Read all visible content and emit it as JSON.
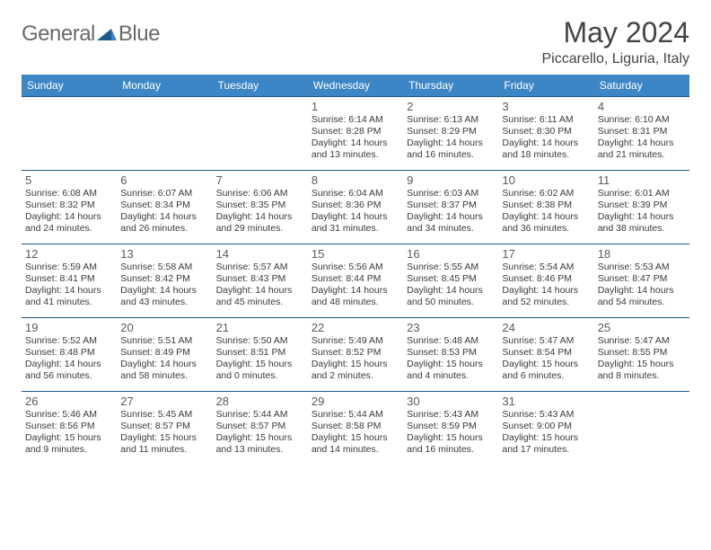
{
  "brand": {
    "name_part1": "General",
    "name_part2": "Blue",
    "text_color": "#6a6a6a",
    "icon_fill": "#1f5a8a"
  },
  "title": "May 2024",
  "location": "Piccarello, Liguria, Italy",
  "colors": {
    "header_bg": "#3d86c6",
    "header_text": "#ffffff",
    "row_border": "#1f5a8a",
    "body_text": "#3a3a3a"
  },
  "day_headers": [
    "Sunday",
    "Monday",
    "Tuesday",
    "Wednesday",
    "Thursday",
    "Friday",
    "Saturday"
  ],
  "weeks": [
    [
      null,
      null,
      null,
      {
        "n": "1",
        "sr": "6:14 AM",
        "ss": "8:28 PM",
        "dl": "14 hours and 13 minutes."
      },
      {
        "n": "2",
        "sr": "6:13 AM",
        "ss": "8:29 PM",
        "dl": "14 hours and 16 minutes."
      },
      {
        "n": "3",
        "sr": "6:11 AM",
        "ss": "8:30 PM",
        "dl": "14 hours and 18 minutes."
      },
      {
        "n": "4",
        "sr": "6:10 AM",
        "ss": "8:31 PM",
        "dl": "14 hours and 21 minutes."
      }
    ],
    [
      {
        "n": "5",
        "sr": "6:08 AM",
        "ss": "8:32 PM",
        "dl": "14 hours and 24 minutes."
      },
      {
        "n": "6",
        "sr": "6:07 AM",
        "ss": "8:34 PM",
        "dl": "14 hours and 26 minutes."
      },
      {
        "n": "7",
        "sr": "6:06 AM",
        "ss": "8:35 PM",
        "dl": "14 hours and 29 minutes."
      },
      {
        "n": "8",
        "sr": "6:04 AM",
        "ss": "8:36 PM",
        "dl": "14 hours and 31 minutes."
      },
      {
        "n": "9",
        "sr": "6:03 AM",
        "ss": "8:37 PM",
        "dl": "14 hours and 34 minutes."
      },
      {
        "n": "10",
        "sr": "6:02 AM",
        "ss": "8:38 PM",
        "dl": "14 hours and 36 minutes."
      },
      {
        "n": "11",
        "sr": "6:01 AM",
        "ss": "8:39 PM",
        "dl": "14 hours and 38 minutes."
      }
    ],
    [
      {
        "n": "12",
        "sr": "5:59 AM",
        "ss": "8:41 PM",
        "dl": "14 hours and 41 minutes."
      },
      {
        "n": "13",
        "sr": "5:58 AM",
        "ss": "8:42 PM",
        "dl": "14 hours and 43 minutes."
      },
      {
        "n": "14",
        "sr": "5:57 AM",
        "ss": "8:43 PM",
        "dl": "14 hours and 45 minutes."
      },
      {
        "n": "15",
        "sr": "5:56 AM",
        "ss": "8:44 PM",
        "dl": "14 hours and 48 minutes."
      },
      {
        "n": "16",
        "sr": "5:55 AM",
        "ss": "8:45 PM",
        "dl": "14 hours and 50 minutes."
      },
      {
        "n": "17",
        "sr": "5:54 AM",
        "ss": "8:46 PM",
        "dl": "14 hours and 52 minutes."
      },
      {
        "n": "18",
        "sr": "5:53 AM",
        "ss": "8:47 PM",
        "dl": "14 hours and 54 minutes."
      }
    ],
    [
      {
        "n": "19",
        "sr": "5:52 AM",
        "ss": "8:48 PM",
        "dl": "14 hours and 56 minutes."
      },
      {
        "n": "20",
        "sr": "5:51 AM",
        "ss": "8:49 PM",
        "dl": "14 hours and 58 minutes."
      },
      {
        "n": "21",
        "sr": "5:50 AM",
        "ss": "8:51 PM",
        "dl": "15 hours and 0 minutes."
      },
      {
        "n": "22",
        "sr": "5:49 AM",
        "ss": "8:52 PM",
        "dl": "15 hours and 2 minutes."
      },
      {
        "n": "23",
        "sr": "5:48 AM",
        "ss": "8:53 PM",
        "dl": "15 hours and 4 minutes."
      },
      {
        "n": "24",
        "sr": "5:47 AM",
        "ss": "8:54 PM",
        "dl": "15 hours and 6 minutes."
      },
      {
        "n": "25",
        "sr": "5:47 AM",
        "ss": "8:55 PM",
        "dl": "15 hours and 8 minutes."
      }
    ],
    [
      {
        "n": "26",
        "sr": "5:46 AM",
        "ss": "8:56 PM",
        "dl": "15 hours and 9 minutes."
      },
      {
        "n": "27",
        "sr": "5:45 AM",
        "ss": "8:57 PM",
        "dl": "15 hours and 11 minutes."
      },
      {
        "n": "28",
        "sr": "5:44 AM",
        "ss": "8:57 PM",
        "dl": "15 hours and 13 minutes."
      },
      {
        "n": "29",
        "sr": "5:44 AM",
        "ss": "8:58 PM",
        "dl": "15 hours and 14 minutes."
      },
      {
        "n": "30",
        "sr": "5:43 AM",
        "ss": "8:59 PM",
        "dl": "15 hours and 16 minutes."
      },
      {
        "n": "31",
        "sr": "5:43 AM",
        "ss": "9:00 PM",
        "dl": "15 hours and 17 minutes."
      },
      null
    ]
  ],
  "labels": {
    "sunrise": "Sunrise: ",
    "sunset": "Sunset: ",
    "daylight": "Daylight: "
  }
}
